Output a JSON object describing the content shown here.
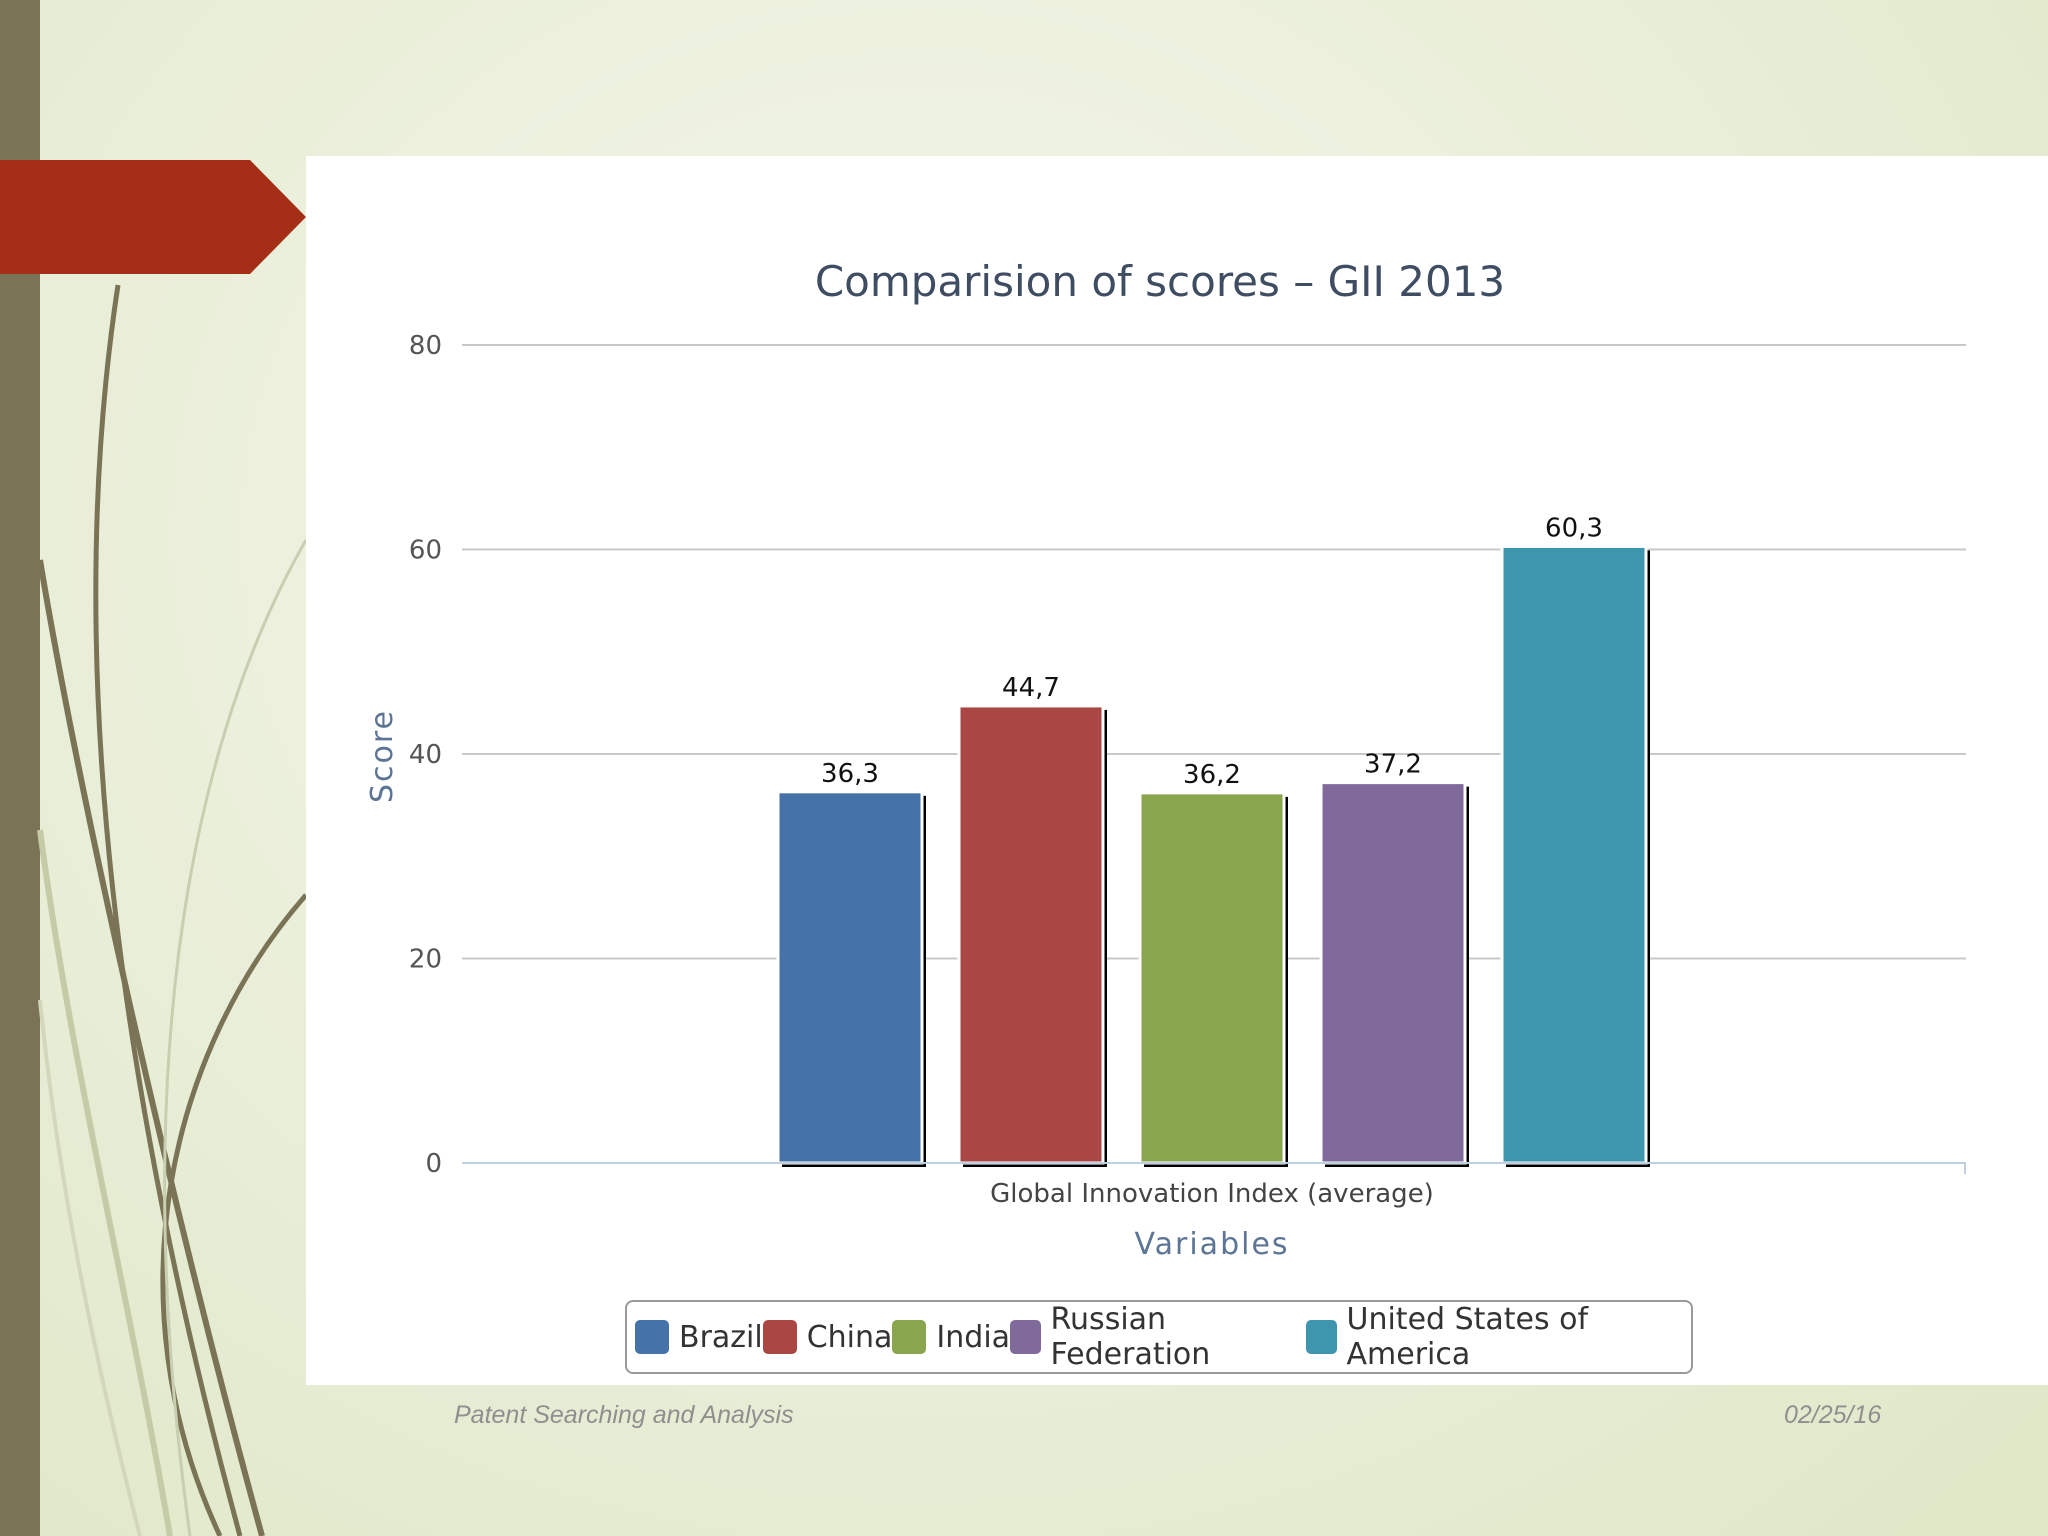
{
  "chart_data": {
    "type": "bar",
    "title": "Comparision of scores – GII 2013",
    "xlabel": "Variables",
    "ylabel": "Score",
    "category_label": "Global Innovation Index (average)",
    "ylim": [
      0,
      80
    ],
    "yticks": [
      0,
      20,
      40,
      60,
      80
    ],
    "grid": true,
    "legend_position": "bottom",
    "series": [
      {
        "name": "Brazil",
        "value": 36.3,
        "label": "36,3",
        "color": "#4572a7"
      },
      {
        "name": "China",
        "value": 44.7,
        "label": "44,7",
        "color": "#aa4643"
      },
      {
        "name": "India",
        "value": 36.2,
        "label": "36,2",
        "color": "#89a54e"
      },
      {
        "name": "Russian Federation",
        "value": 37.2,
        "label": "37,2",
        "color": "#80699b"
      },
      {
        "name": "United States of America",
        "value": 60.3,
        "label": "60,3",
        "color": "#3d96ae"
      }
    ]
  },
  "footer": {
    "left": "Patent Searching and Analysis",
    "right": "02/25/16"
  },
  "theme": {
    "accent_red": "#a52e16",
    "sidebar": "#7a7356"
  }
}
